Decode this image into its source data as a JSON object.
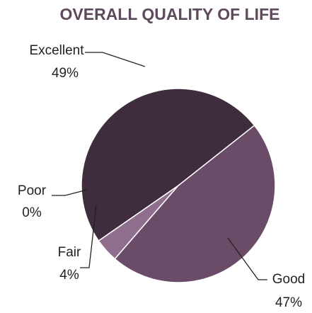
{
  "chart_data": {
    "type": "pie",
    "title": "OVERALL QUALITY OF LIFE",
    "categories": [
      "Excellent",
      "Good",
      "Fair",
      "Poor"
    ],
    "values": [
      49,
      47,
      4,
      0
    ],
    "value_labels": [
      "49%",
      "47%",
      "4%",
      "0%"
    ],
    "colors": [
      "#3f2d3e",
      "#6a4b68",
      "#906e8e",
      "#e8dde7"
    ]
  }
}
